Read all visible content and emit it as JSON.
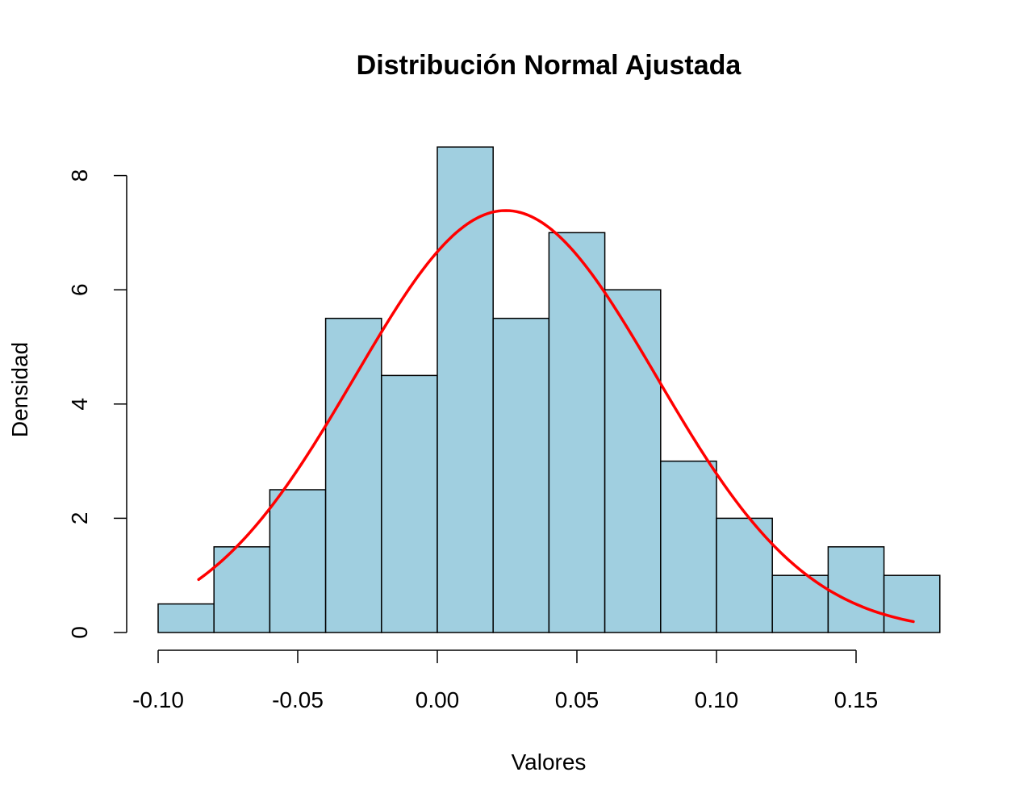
{
  "chart_data": {
    "type": "histogram",
    "title": "Distribución Normal Ajustada",
    "xlabel": "Valores",
    "ylabel": "Densidad",
    "bins": [
      {
        "x0": -0.1,
        "x1": -0.08,
        "density": 0.5
      },
      {
        "x0": -0.08,
        "x1": -0.06,
        "density": 1.5
      },
      {
        "x0": -0.06,
        "x1": -0.04,
        "density": 2.5
      },
      {
        "x0": -0.04,
        "x1": -0.02,
        "density": 5.5
      },
      {
        "x0": -0.02,
        "x1": 0.0,
        "density": 4.5
      },
      {
        "x0": 0.0,
        "x1": 0.02,
        "density": 8.5
      },
      {
        "x0": 0.02,
        "x1": 0.04,
        "density": 5.5
      },
      {
        "x0": 0.04,
        "x1": 0.06,
        "density": 7.0
      },
      {
        "x0": 0.06,
        "x1": 0.08,
        "density": 6.0
      },
      {
        "x0": 0.08,
        "x1": 0.1,
        "density": 3.0
      },
      {
        "x0": 0.1,
        "x1": 0.12,
        "density": 2.0
      },
      {
        "x0": 0.12,
        "x1": 0.14,
        "density": 1.0
      },
      {
        "x0": 0.14,
        "x1": 0.16,
        "density": 1.5
      },
      {
        "x0": 0.16,
        "x1": 0.18,
        "density": 1.0
      }
    ],
    "normal_fit": {
      "mean": 0.0245,
      "sd": 0.054,
      "x_from": -0.0855,
      "x_to": 0.1705
    },
    "x_ticks": [
      -0.1,
      -0.05,
      0.0,
      0.05,
      0.1,
      0.15
    ],
    "x_tick_labels": [
      "-0.10",
      "-0.05",
      "0.00",
      "0.05",
      "0.10",
      "0.15"
    ],
    "y_ticks": [
      0,
      2,
      4,
      6,
      8
    ],
    "y_tick_labels": [
      "0",
      "2",
      "4",
      "6",
      "8"
    ],
    "xlim": [
      -0.1,
      0.18
    ],
    "ylim": [
      0,
      8.5
    ],
    "grid": false,
    "colors": {
      "bar_fill": "#a0cfe0",
      "bar_border": "#000000",
      "curve": "#ff0000"
    }
  }
}
